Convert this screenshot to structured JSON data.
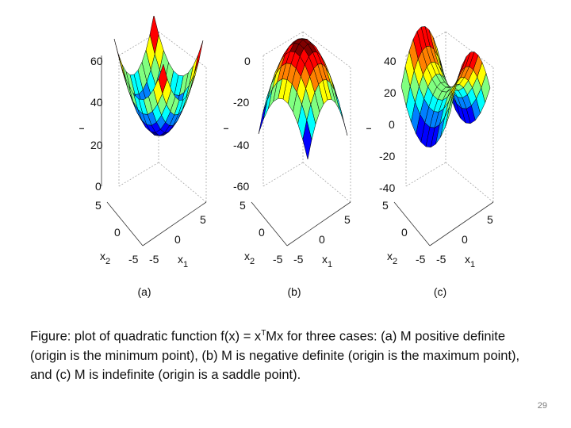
{
  "figure": {
    "panels": [
      {
        "id": "a",
        "label": "(a)",
        "surface": "positive definite (bowl)",
        "z_label": "f",
        "z_ticks": [
          "60",
          "40",
          "20",
          "0"
        ],
        "x2_label_base": "x",
        "x2_label_sub": "2",
        "x1_label_base": "x",
        "x1_label_sub": "1",
        "x2_ticks": [
          "5",
          "0",
          "-5"
        ],
        "x1_ticks": [
          "-5",
          "0",
          "5"
        ]
      },
      {
        "id": "b",
        "label": "(b)",
        "surface": "negative definite (dome)",
        "z_label": "f",
        "z_ticks": [
          "0",
          "-20",
          "-40",
          "-60"
        ],
        "x2_label_base": "x",
        "x2_label_sub": "2",
        "x1_label_base": "x",
        "x1_label_sub": "1",
        "x2_ticks": [
          "5",
          "0",
          "-5"
        ],
        "x1_ticks": [
          "-5",
          "0",
          "5"
        ]
      },
      {
        "id": "c",
        "label": "(c)",
        "surface": "indefinite (saddle)",
        "z_label": "f",
        "z_ticks": [
          "40",
          "20",
          "0",
          "-20",
          "-40"
        ],
        "x2_label_base": "x",
        "x2_label_sub": "2",
        "x1_label_base": "x",
        "x1_label_sub": "1",
        "x2_ticks": [
          "5",
          "0",
          "-5"
        ],
        "x1_ticks": [
          "-5",
          "0",
          "5"
        ]
      }
    ],
    "colormap": [
      "#00008f",
      "#0000ff",
      "#0080ff",
      "#00ffff",
      "#80ff80",
      "#ffff00",
      "#ff8000",
      "#ff0000",
      "#800000"
    ]
  },
  "caption": {
    "part1": "Figure: plot of quadratic function f(x) = x",
    "superscript": "T",
    "part2": "Mx for three cases: (a) M positive definite (origin is the minimum point), (b) M is negative definite (origin is the maximum point), and (c) M is indefinite (origin is a saddle point)."
  },
  "page_number": "29"
}
